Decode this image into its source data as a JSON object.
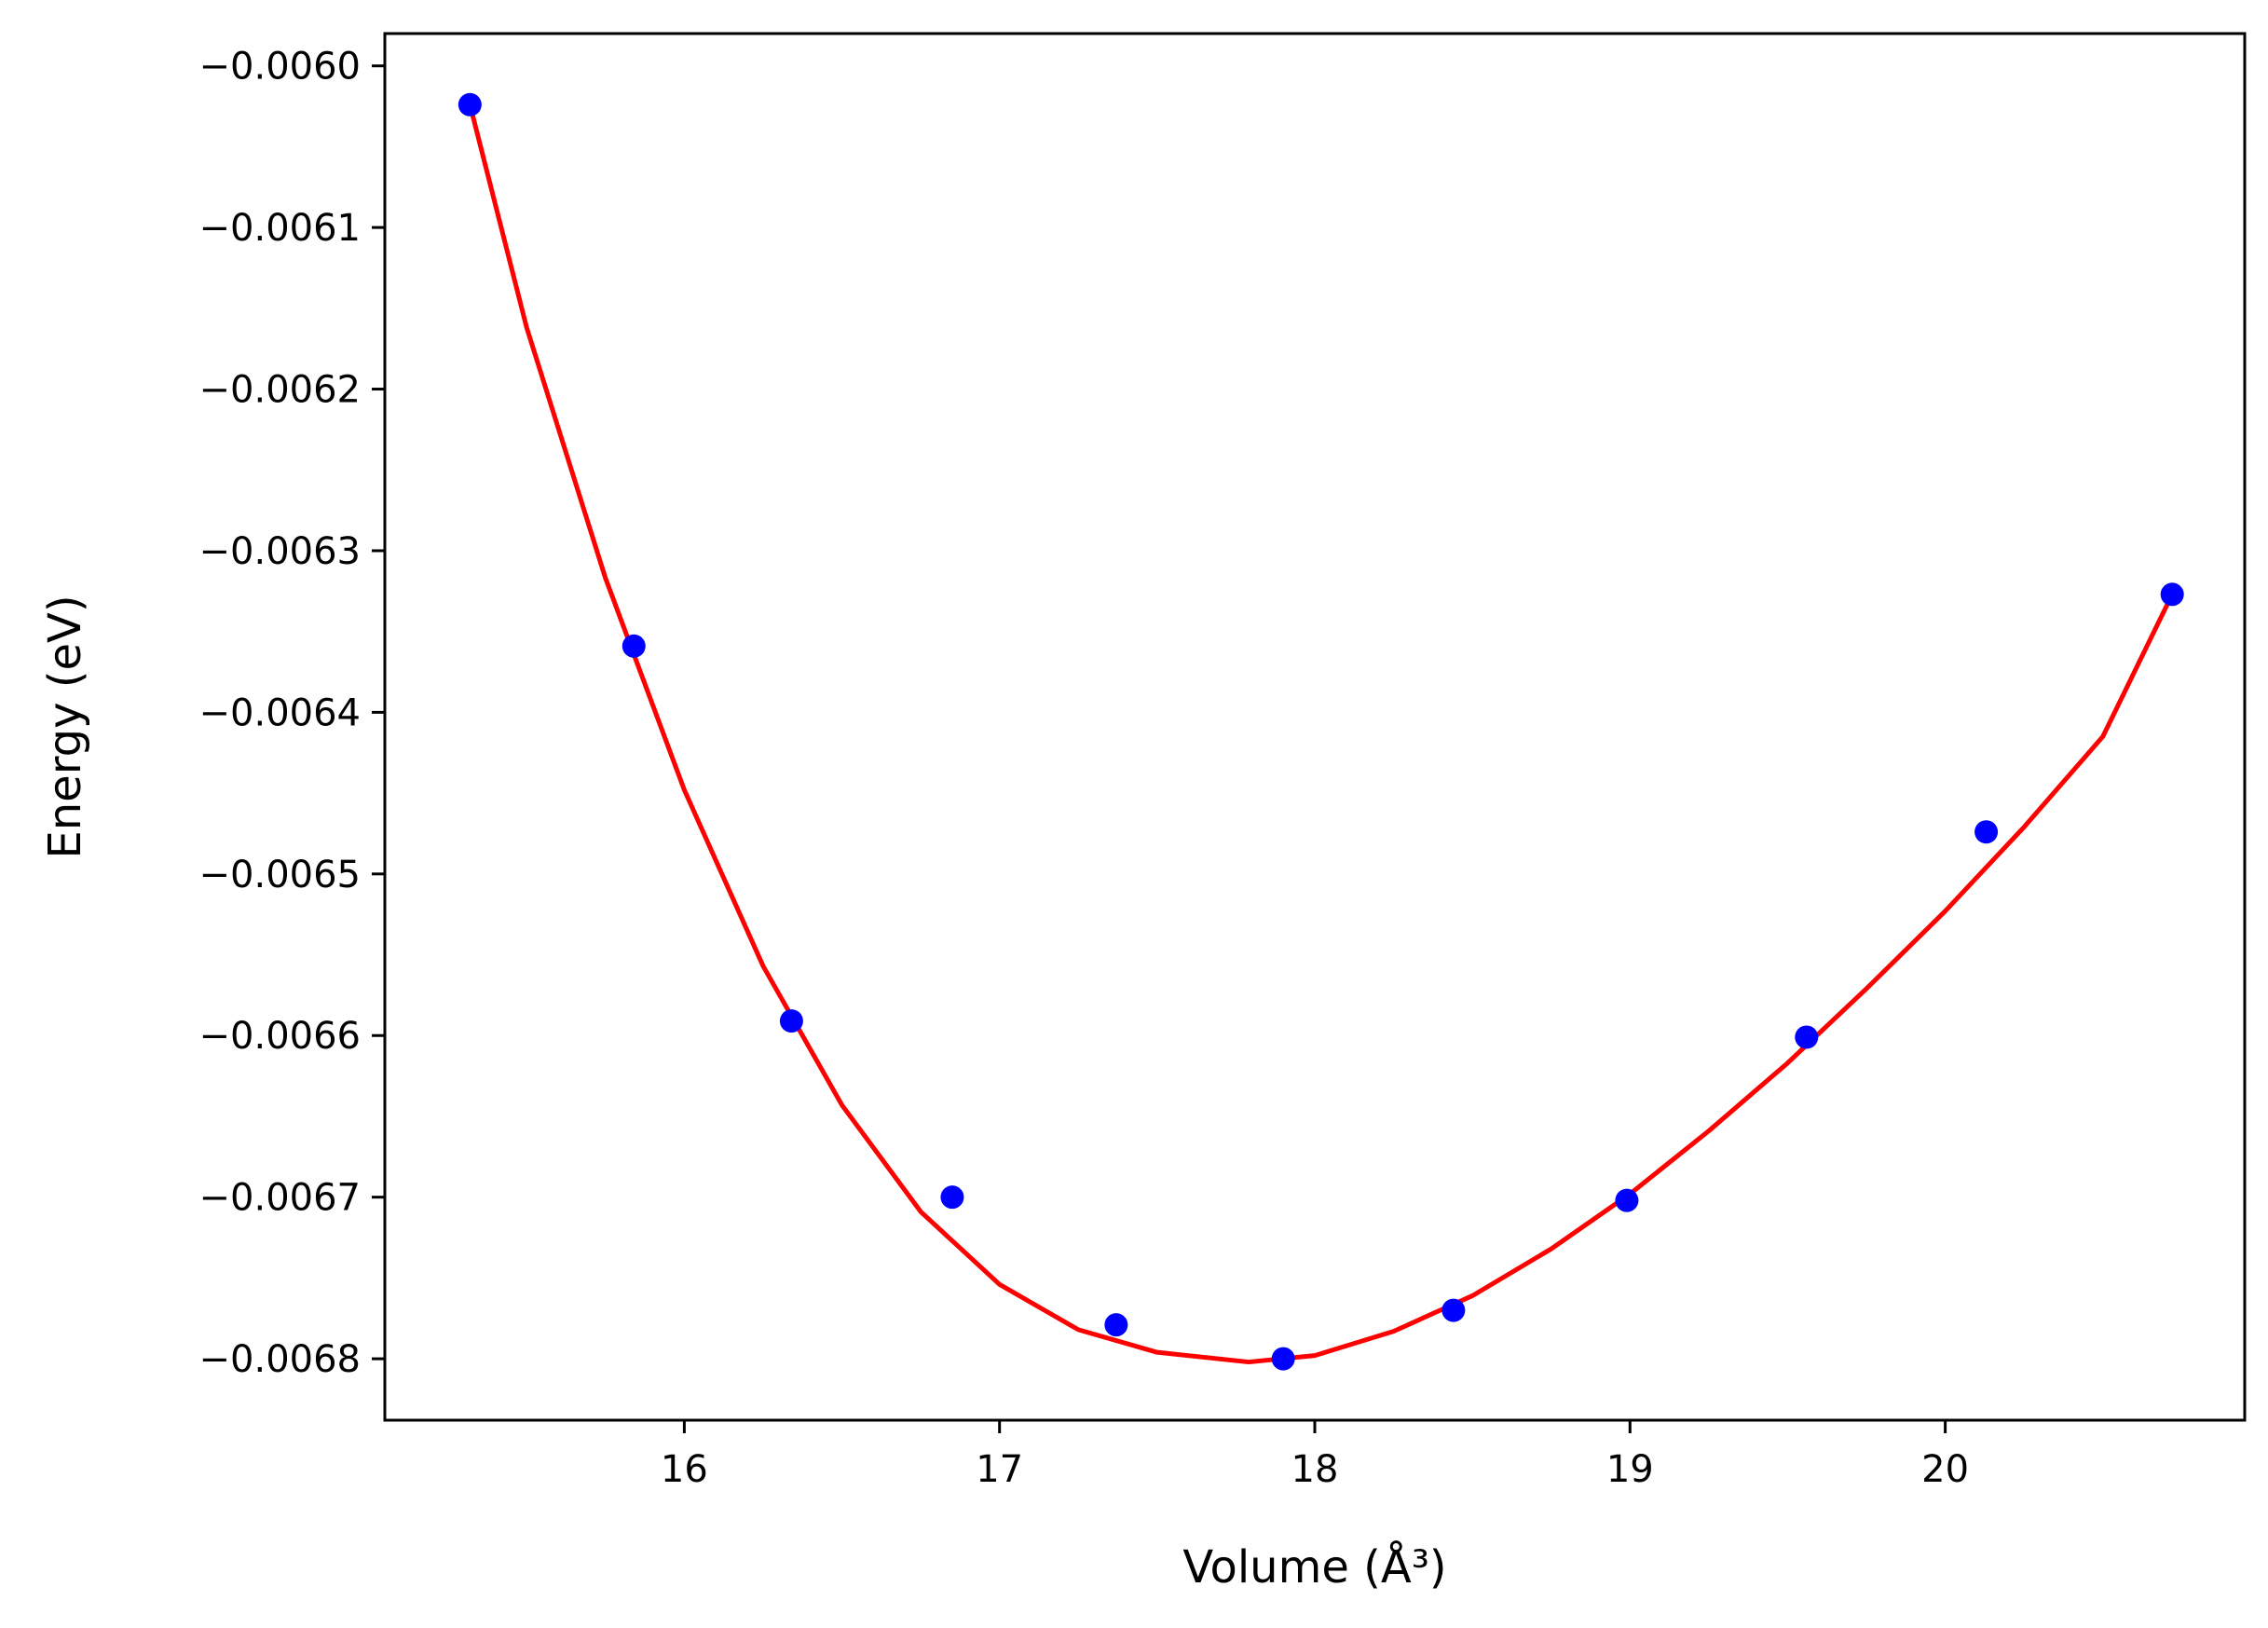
{
  "chart_data": {
    "type": "scatter",
    "xlabel": "Volume (Å³)",
    "ylabel": "Energy (eV)",
    "xlim": [
      15.05,
      20.95
    ],
    "ylim": [
      -0.006838,
      -0.00598
    ],
    "xticks": [
      16,
      17,
      18,
      19,
      20
    ],
    "xtick_labels": [
      "16",
      "17",
      "18",
      "19",
      "20"
    ],
    "yticks": [
      -0.006,
      -0.0061,
      -0.0062,
      -0.0063,
      -0.0064,
      -0.0065,
      -0.0066,
      -0.0067,
      -0.0068
    ],
    "ytick_labels": [
      "−0.0060",
      "−0.0061",
      "−0.0062",
      "−0.0063",
      "−0.0064",
      "−0.0065",
      "−0.0066",
      "−0.0067",
      "−0.0068"
    ],
    "grid": false,
    "colors": {
      "points": "#0000ff",
      "fit_line": "#ff0000",
      "axes": "#000000"
    },
    "series": [
      {
        "kind": "points",
        "x": [
          15.32,
          15.84,
          16.34,
          16.85,
          17.37,
          17.9,
          18.44,
          18.99,
          19.56,
          20.13,
          20.72
        ],
        "y": [
          -0.006024,
          -0.006359,
          -0.006591,
          -0.0067,
          -0.006779,
          -0.0068,
          -0.00677,
          -0.006702,
          -0.006601,
          -0.006474,
          -0.006327
        ]
      },
      {
        "kind": "line",
        "x": [
          15.32,
          15.5,
          15.75,
          16.0,
          16.25,
          16.5,
          16.75,
          17.0,
          17.25,
          17.5,
          17.79,
          18.0,
          18.25,
          18.5,
          18.75,
          19.0,
          19.25,
          19.5,
          19.75,
          20.0,
          20.25,
          20.5,
          20.72
        ],
        "y": [
          -0.006024,
          -0.006162,
          -0.006317,
          -0.006448,
          -0.006557,
          -0.006643,
          -0.006709,
          -0.006754,
          -0.006782,
          -0.006796,
          -0.006802,
          -0.006798,
          -0.006783,
          -0.006761,
          -0.006732,
          -0.006698,
          -0.006659,
          -0.006617,
          -0.006571,
          -0.006523,
          -0.006471,
          -0.006415,
          -0.006327
        ]
      }
    ]
  }
}
